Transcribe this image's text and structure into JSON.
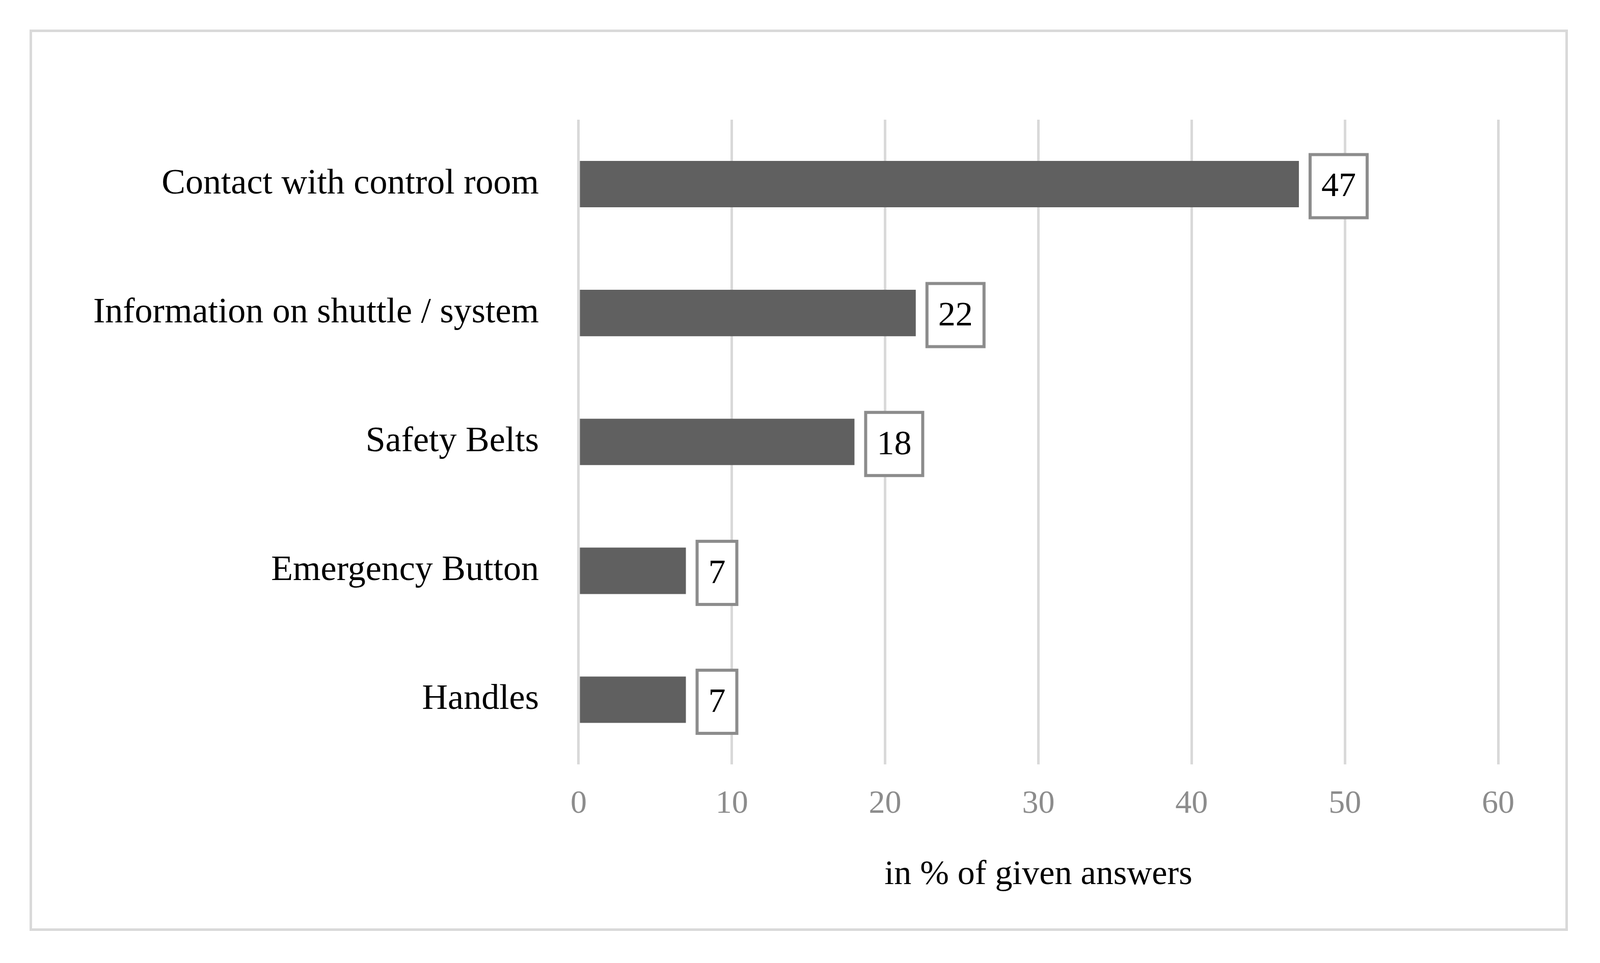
{
  "chart_data": {
    "type": "bar",
    "orientation": "horizontal",
    "categories": [
      "Contact with control room",
      "Information on shuttle / system",
      "Safety Belts",
      "Emergency Button",
      "Handles"
    ],
    "values": [
      47,
      22,
      18,
      7,
      7
    ],
    "color": "#606060",
    "x_label": "in % of given answers",
    "xlim": [
      0,
      60
    ],
    "xticks": [
      0,
      10,
      20,
      30,
      40,
      50,
      60
    ],
    "grid": true,
    "data_labels": true
  }
}
